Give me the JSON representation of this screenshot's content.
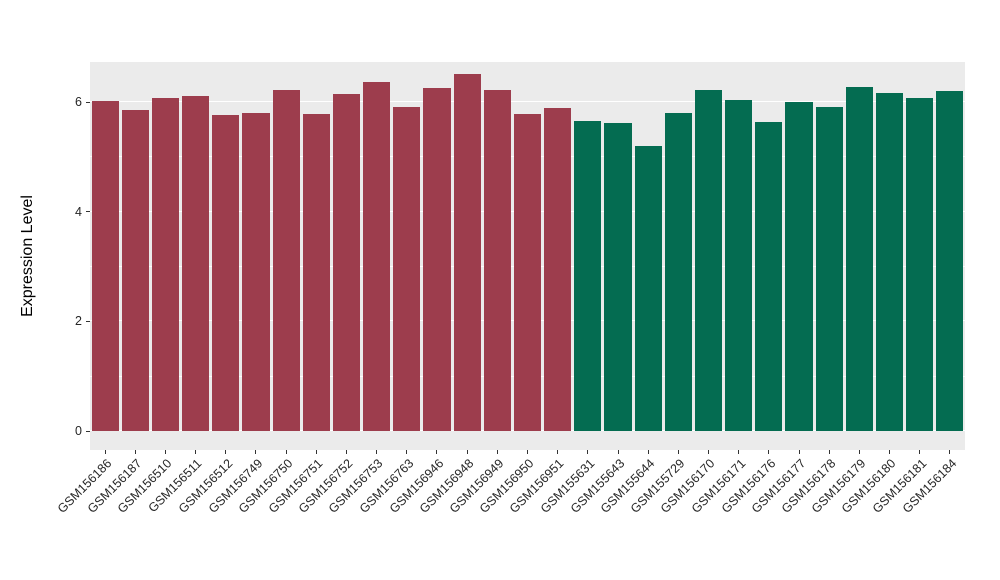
{
  "chart_data": {
    "type": "bar",
    "title": "",
    "xlabel": "",
    "ylabel": "Expression Level",
    "ylim": [
      0,
      6.73
    ],
    "yticks": [
      0,
      2,
      4,
      6
    ],
    "yticks_minor": [
      1,
      3,
      5
    ],
    "grid": "on",
    "legend": "none",
    "panel_background": "#EBEBEB",
    "grid_color": "#FFFFFF",
    "categories": [
      "GSM156186",
      "GSM156187",
      "GSM156510",
      "GSM156511",
      "GSM156512",
      "GSM156749",
      "GSM156750",
      "GSM156751",
      "GSM156752",
      "GSM156753",
      "GSM156763",
      "GSM156946",
      "GSM156948",
      "GSM156949",
      "GSM156950",
      "GSM156951",
      "GSM155631",
      "GSM155643",
      "GSM155644",
      "GSM155729",
      "GSM156170",
      "GSM156171",
      "GSM156176",
      "GSM156177",
      "GSM156178",
      "GSM156179",
      "GSM156180",
      "GSM156181",
      "GSM156184"
    ],
    "values": [
      6.02,
      5.86,
      6.08,
      6.11,
      5.77,
      5.8,
      6.22,
      5.79,
      6.15,
      6.37,
      5.91,
      6.26,
      6.51,
      6.22,
      5.78,
      5.89,
      5.66,
      5.62,
      5.2,
      5.8,
      6.22,
      6.04,
      5.64,
      6.0,
      5.91,
      6.28,
      6.17,
      6.08,
      6.21
    ],
    "groups": [
      0,
      0,
      0,
      0,
      0,
      0,
      0,
      0,
      0,
      0,
      0,
      0,
      0,
      0,
      0,
      0,
      1,
      1,
      1,
      1,
      1,
      1,
      1,
      1,
      1,
      1,
      1,
      1,
      1
    ],
    "group_colors": [
      "#9D3D4D",
      "#046C51"
    ]
  }
}
